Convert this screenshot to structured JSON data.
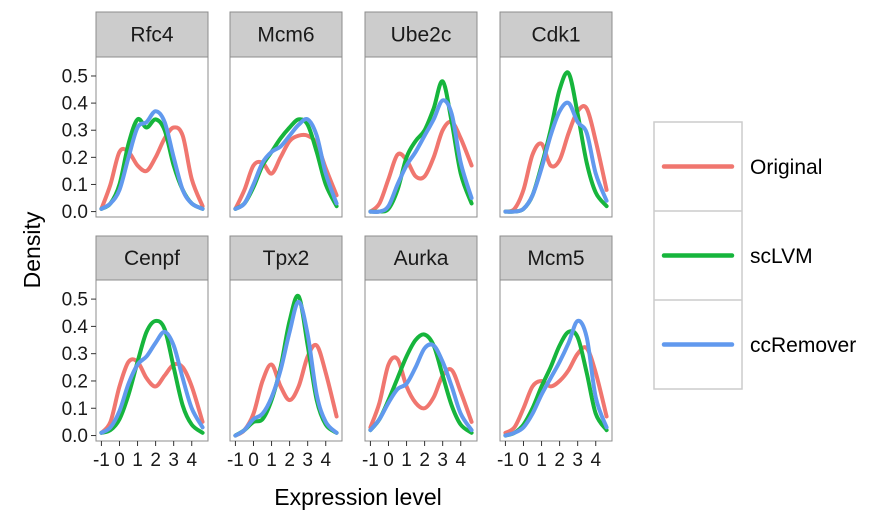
{
  "chart_data": {
    "type": "line",
    "title": "",
    "xlabel": "Expression level",
    "ylabel": "Density",
    "xlim": [
      -1.3,
      4.9
    ],
    "ylim": [
      -0.02,
      0.57
    ],
    "x_ticks": [
      -1,
      0,
      1,
      2,
      3,
      4
    ],
    "y_ticks": [
      0.0,
      0.1,
      0.2,
      0.3,
      0.4,
      0.5
    ],
    "x_tick_labels": [
      "-1",
      "0",
      "1",
      "2",
      "3",
      "4"
    ],
    "y_tick_labels": [
      "0.0",
      "0.1",
      "0.2",
      "0.3",
      "0.4",
      "0.5"
    ],
    "grid": false,
    "legend_position": "right",
    "series_colors": {
      "Original": "#f0766f",
      "scLVM": "#16b53c",
      "ccRemover": "#6199ee"
    },
    "legend": [
      "Original",
      "scLVM",
      "ccRemover"
    ],
    "panels": [
      {
        "gene": "Rfc4",
        "series": [
          {
            "name": "Original",
            "x": [
              -1.0,
              -0.5,
              0.0,
              0.5,
              1.0,
              1.5,
              2.0,
              2.5,
              3.0,
              3.5,
              4.0,
              4.6
            ],
            "y": [
              0.01,
              0.1,
              0.22,
              0.22,
              0.17,
              0.15,
              0.2,
              0.27,
              0.31,
              0.28,
              0.12,
              0.02
            ]
          },
          {
            "name": "scLVM",
            "x": [
              -1.0,
              -0.5,
              0.0,
              0.5,
              1.0,
              1.5,
              2.0,
              2.5,
              3.0,
              3.5,
              4.0,
              4.6
            ],
            "y": [
              0.01,
              0.03,
              0.1,
              0.25,
              0.34,
              0.31,
              0.34,
              0.3,
              0.17,
              0.08,
              0.03,
              0.01
            ]
          },
          {
            "name": "ccRemover",
            "x": [
              -1.0,
              -0.5,
              0.0,
              0.5,
              1.0,
              1.5,
              2.0,
              2.5,
              3.0,
              3.5,
              4.0,
              4.6
            ],
            "y": [
              0.01,
              0.03,
              0.08,
              0.2,
              0.31,
              0.33,
              0.37,
              0.33,
              0.2,
              0.08,
              0.03,
              0.01
            ]
          }
        ]
      },
      {
        "gene": "Mcm6",
        "series": [
          {
            "name": "Original",
            "x": [
              -1.0,
              -0.5,
              0.0,
              0.5,
              1.0,
              1.5,
              2.0,
              2.5,
              3.0,
              3.5,
              4.0,
              4.6
            ],
            "y": [
              0.01,
              0.08,
              0.17,
              0.18,
              0.14,
              0.2,
              0.26,
              0.28,
              0.28,
              0.25,
              0.16,
              0.06
            ]
          },
          {
            "name": "scLVM",
            "x": [
              -1.0,
              -0.5,
              0.0,
              0.5,
              1.0,
              1.5,
              2.0,
              2.5,
              3.0,
              3.5,
              4.0,
              4.6
            ],
            "y": [
              0.01,
              0.03,
              0.09,
              0.17,
              0.22,
              0.27,
              0.31,
              0.34,
              0.32,
              0.22,
              0.1,
              0.02
            ]
          },
          {
            "name": "ccRemover",
            "x": [
              -1.0,
              -0.5,
              0.0,
              0.5,
              1.0,
              1.5,
              2.0,
              2.5,
              3.0,
              3.5,
              4.0,
              4.6
            ],
            "y": [
              0.01,
              0.03,
              0.1,
              0.18,
              0.22,
              0.24,
              0.28,
              0.32,
              0.34,
              0.28,
              0.14,
              0.03
            ]
          }
        ]
      },
      {
        "gene": "Ube2c",
        "series": [
          {
            "name": "Original",
            "x": [
              -1.0,
              -0.5,
              0.0,
              0.5,
              1.0,
              1.5,
              2.0,
              2.5,
              3.0,
              3.5,
              4.0,
              4.6
            ],
            "y": [
              0.0,
              0.03,
              0.12,
              0.21,
              0.19,
              0.13,
              0.13,
              0.2,
              0.3,
              0.33,
              0.27,
              0.17
            ]
          },
          {
            "name": "scLVM",
            "x": [
              -1.0,
              -0.5,
              0.0,
              0.5,
              1.0,
              1.5,
              2.0,
              2.5,
              3.0,
              3.5,
              4.0,
              4.6
            ],
            "y": [
              0.0,
              0.0,
              0.01,
              0.08,
              0.2,
              0.26,
              0.3,
              0.38,
              0.48,
              0.33,
              0.14,
              0.03
            ]
          },
          {
            "name": "ccRemover",
            "x": [
              -1.0,
              -0.5,
              0.0,
              0.5,
              1.0,
              1.5,
              2.0,
              2.5,
              3.0,
              3.5,
              4.0,
              4.6
            ],
            "y": [
              0.0,
              0.0,
              0.02,
              0.1,
              0.17,
              0.22,
              0.28,
              0.34,
              0.41,
              0.36,
              0.18,
              0.05
            ]
          }
        ]
      },
      {
        "gene": "Cdk1",
        "series": [
          {
            "name": "Original",
            "x": [
              -1.0,
              -0.5,
              0.0,
              0.5,
              1.0,
              1.5,
              2.0,
              2.5,
              3.0,
              3.5,
              4.0,
              4.6
            ],
            "y": [
              0.0,
              0.01,
              0.08,
              0.21,
              0.25,
              0.17,
              0.19,
              0.29,
              0.37,
              0.38,
              0.26,
              0.08
            ]
          },
          {
            "name": "scLVM",
            "x": [
              -1.0,
              -0.5,
              0.0,
              0.5,
              1.0,
              1.5,
              2.0,
              2.5,
              3.0,
              3.5,
              4.0,
              4.6
            ],
            "y": [
              0.0,
              0.0,
              0.01,
              0.06,
              0.17,
              0.3,
              0.45,
              0.51,
              0.36,
              0.18,
              0.07,
              0.02
            ]
          },
          {
            "name": "ccRemover",
            "x": [
              -1.0,
              -0.5,
              0.0,
              0.5,
              1.0,
              1.5,
              2.0,
              2.5,
              3.0,
              3.5,
              4.0,
              4.6
            ],
            "y": [
              0.0,
              0.0,
              0.01,
              0.06,
              0.16,
              0.28,
              0.37,
              0.4,
              0.33,
              0.29,
              0.14,
              0.04
            ]
          }
        ]
      },
      {
        "gene": "Cenpf",
        "series": [
          {
            "name": "Original",
            "x": [
              -1.0,
              -0.5,
              0.0,
              0.5,
              1.0,
              1.5,
              2.0,
              2.5,
              3.0,
              3.5,
              4.0,
              4.6
            ],
            "y": [
              0.01,
              0.05,
              0.18,
              0.27,
              0.27,
              0.21,
              0.18,
              0.22,
              0.26,
              0.25,
              0.18,
              0.05
            ]
          },
          {
            "name": "scLVM",
            "x": [
              -1.0,
              -0.5,
              0.0,
              0.5,
              1.0,
              1.5,
              2.0,
              2.5,
              3.0,
              3.5,
              4.0,
              4.6
            ],
            "y": [
              0.01,
              0.02,
              0.06,
              0.15,
              0.27,
              0.38,
              0.42,
              0.39,
              0.25,
              0.11,
              0.04,
              0.01
            ]
          },
          {
            "name": "ccRemover",
            "x": [
              -1.0,
              -0.5,
              0.0,
              0.5,
              1.0,
              1.5,
              2.0,
              2.5,
              3.0,
              3.5,
              4.0,
              4.6
            ],
            "y": [
              0.01,
              0.03,
              0.09,
              0.19,
              0.26,
              0.29,
              0.34,
              0.38,
              0.33,
              0.21,
              0.1,
              0.03
            ]
          }
        ]
      },
      {
        "gene": "Tpx2",
        "series": [
          {
            "name": "Original",
            "x": [
              -1.0,
              -0.5,
              0.0,
              0.5,
              1.0,
              1.5,
              2.0,
              2.5,
              3.0,
              3.5,
              4.0,
              4.6
            ],
            "y": [
              0.0,
              0.02,
              0.08,
              0.2,
              0.26,
              0.18,
              0.13,
              0.18,
              0.29,
              0.33,
              0.23,
              0.07
            ]
          },
          {
            "name": "scLVM",
            "x": [
              -1.0,
              -0.5,
              0.0,
              0.5,
              1.0,
              1.5,
              2.0,
              2.5,
              3.0,
              3.5,
              4.0,
              4.6
            ],
            "y": [
              0.0,
              0.02,
              0.05,
              0.06,
              0.13,
              0.25,
              0.42,
              0.51,
              0.33,
              0.13,
              0.04,
              0.01
            ]
          },
          {
            "name": "ccRemover",
            "x": [
              -1.0,
              -0.5,
              0.0,
              0.5,
              1.0,
              1.5,
              2.0,
              2.5,
              3.0,
              3.5,
              4.0,
              4.6
            ],
            "y": [
              0.0,
              0.02,
              0.06,
              0.08,
              0.14,
              0.24,
              0.38,
              0.49,
              0.37,
              0.15,
              0.05,
              0.01
            ]
          }
        ]
      },
      {
        "gene": "Aurka",
        "series": [
          {
            "name": "Original",
            "x": [
              -1.0,
              -0.5,
              0.0,
              0.5,
              1.0,
              1.5,
              2.0,
              2.5,
              3.0,
              3.5,
              4.0,
              4.6
            ],
            "y": [
              0.03,
              0.12,
              0.26,
              0.28,
              0.18,
              0.12,
              0.1,
              0.14,
              0.22,
              0.24,
              0.16,
              0.05
            ]
          },
          {
            "name": "scLVM",
            "x": [
              -1.0,
              -0.5,
              0.0,
              0.5,
              1.0,
              1.5,
              2.0,
              2.5,
              3.0,
              3.5,
              4.0,
              4.6
            ],
            "y": [
              0.02,
              0.06,
              0.13,
              0.21,
              0.29,
              0.35,
              0.37,
              0.33,
              0.22,
              0.11,
              0.04,
              0.01
            ]
          },
          {
            "name": "ccRemover",
            "x": [
              -1.0,
              -0.5,
              0.0,
              0.5,
              1.0,
              1.5,
              2.0,
              2.5,
              3.0,
              3.5,
              4.0,
              4.6
            ],
            "y": [
              0.02,
              0.06,
              0.12,
              0.17,
              0.19,
              0.25,
              0.32,
              0.33,
              0.27,
              0.18,
              0.08,
              0.02
            ]
          }
        ]
      },
      {
        "gene": "Mcm5",
        "series": [
          {
            "name": "Original",
            "x": [
              -1.0,
              -0.5,
              0.0,
              0.5,
              1.0,
              1.5,
              2.0,
              2.5,
              3.0,
              3.5,
              4.0,
              4.6
            ],
            "y": [
              0.01,
              0.03,
              0.1,
              0.18,
              0.2,
              0.18,
              0.2,
              0.24,
              0.3,
              0.32,
              0.23,
              0.07
            ]
          },
          {
            "name": "scLVM",
            "x": [
              -1.0,
              -0.5,
              0.0,
              0.5,
              1.0,
              1.5,
              2.0,
              2.5,
              3.0,
              3.5,
              4.0,
              4.6
            ],
            "y": [
              0.0,
              0.01,
              0.04,
              0.1,
              0.18,
              0.25,
              0.33,
              0.38,
              0.36,
              0.23,
              0.08,
              0.02
            ]
          },
          {
            "name": "ccRemover",
            "x": [
              -1.0,
              -0.5,
              0.0,
              0.5,
              1.0,
              1.5,
              2.0,
              2.5,
              3.0,
              3.5,
              4.0,
              4.6
            ],
            "y": [
              0.0,
              0.01,
              0.03,
              0.08,
              0.15,
              0.21,
              0.27,
              0.34,
              0.42,
              0.36,
              0.14,
              0.03
            ]
          }
        ]
      }
    ]
  }
}
